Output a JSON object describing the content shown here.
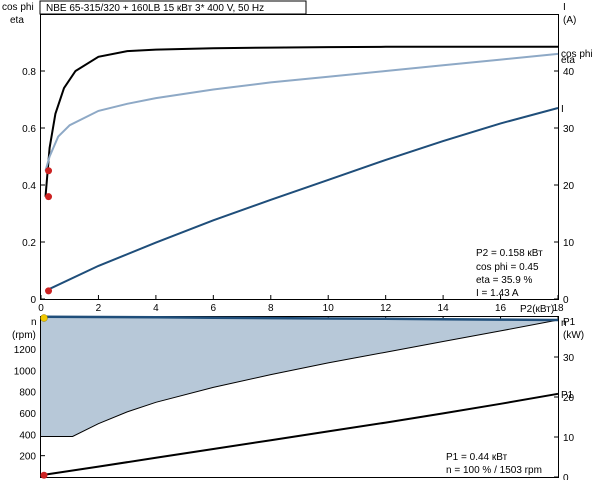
{
  "title": "NBE 65-315/320 + 160LB    15 кВт   3* 400 V, 50 Hz",
  "colors": {
    "cos_phi": "#8ea9c6",
    "eta": "#000000",
    "current": "#1f4e7a",
    "speed": "#1f4e7a",
    "speed_fill": "#b7c8d8",
    "p1": "#000000",
    "marker": "#cc2222",
    "marker_yellow": "#f0c800"
  },
  "chart_data": [
    {
      "type": "line",
      "name": "top",
      "left_axis_labels": [
        "cos phi",
        "eta"
      ],
      "right_axis_labels": [
        "I",
        "(A)"
      ],
      "xlim": [
        0,
        18
      ],
      "x_ticks": [
        0,
        2,
        4,
        6,
        8,
        10,
        12,
        14,
        16,
        18
      ],
      "xlabel": "P2(кВт)",
      "ylim_left": [
        0,
        1.0
      ],
      "y_ticks_left": [
        0,
        0.2,
        0.4,
        0.6,
        0.8
      ],
      "ylim_right": [
        0,
        50
      ],
      "y_ticks_right": [
        0,
        10,
        20,
        30,
        40
      ],
      "series": [
        {
          "name": "eta",
          "axis": "left",
          "label": "eta",
          "x": [
            0.158,
            0.3,
            0.5,
            0.8,
            1.2,
            2,
            3,
            4,
            6,
            8,
            10,
            12,
            14,
            16,
            18
          ],
          "y": [
            0.359,
            0.53,
            0.65,
            0.74,
            0.8,
            0.85,
            0.87,
            0.875,
            0.88,
            0.882,
            0.884,
            0.885,
            0.885,
            0.885,
            0.885
          ]
        },
        {
          "name": "cos phi",
          "axis": "left",
          "label": "cos phi",
          "x": [
            0.158,
            0.3,
            0.6,
            1.0,
            2,
            3,
            4,
            6,
            8,
            10,
            12,
            14,
            16,
            18
          ],
          "y": [
            0.45,
            0.5,
            0.57,
            0.61,
            0.66,
            0.685,
            0.705,
            0.735,
            0.76,
            0.78,
            0.8,
            0.82,
            0.84,
            0.86
          ]
        },
        {
          "name": "I",
          "axis": "right",
          "label": "I",
          "x": [
            0.158,
            2,
            4,
            6,
            8,
            10,
            12,
            14,
            16,
            18
          ],
          "y": [
            1.43,
            5.8,
            9.9,
            13.8,
            17.4,
            20.9,
            24.4,
            27.7,
            30.8,
            33.5
          ]
        }
      ],
      "markers": [
        {
          "axis": "left",
          "x": 0.158,
          "y": 0.45
        },
        {
          "axis": "left",
          "x": 0.158,
          "y": 0.359
        },
        {
          "axis": "right",
          "x": 0.158,
          "y": 1.43
        }
      ],
      "info": [
        "P2  = 0.158 кВт",
        "cos phi = 0.45",
        "eta  = 35.9 %",
        "I   = 1.43 A"
      ]
    },
    {
      "type": "area",
      "name": "bottom",
      "left_axis_labels": [
        "n",
        "(rpm)"
      ],
      "right_axis_labels": [
        "P1",
        "(kW)"
      ],
      "xlim": [
        0,
        18
      ],
      "ylim_left": [
        0,
        1500
      ],
      "y_ticks_left": [
        200,
        400,
        600,
        800,
        1000,
        1200
      ],
      "ylim_right": [
        0,
        40
      ],
      "y_ticks_right": [
        0,
        10,
        20,
        30
      ],
      "series": [
        {
          "name": "n",
          "axis": "left",
          "label": "n",
          "x": [
            0,
            2,
            4,
            6,
            8,
            10,
            12,
            14,
            16,
            18
          ],
          "y": [
            1503,
            1500,
            1497,
            1493,
            1490,
            1486,
            1483,
            1479,
            1476,
            1472
          ]
        },
        {
          "name": "n_min",
          "axis": "left",
          "x": [
            0,
            1.1,
            2,
            3,
            4,
            6,
            8,
            10,
            12,
            14,
            16,
            18
          ],
          "y": [
            380,
            380,
            500,
            610,
            700,
            840,
            960,
            1070,
            1170,
            1270,
            1370,
            1472
          ]
        },
        {
          "name": "P1",
          "axis": "right",
          "label": "P1",
          "x": [
            0,
            2,
            4,
            6,
            8,
            10,
            12,
            14,
            16,
            18
          ],
          "y": [
            0.44,
            2.6,
            4.8,
            7.0,
            9.2,
            11.4,
            13.6,
            15.9,
            18.3,
            20.8
          ]
        }
      ],
      "markers": [
        {
          "axis": "left",
          "x": 0,
          "y": 1503,
          "color": "yellow"
        },
        {
          "axis": "right",
          "x": 0,
          "y": 0.44
        }
      ],
      "info": [
        "P1  = 0.44 кВт",
        "n   = 100 % / 1503 rpm"
      ]
    }
  ]
}
